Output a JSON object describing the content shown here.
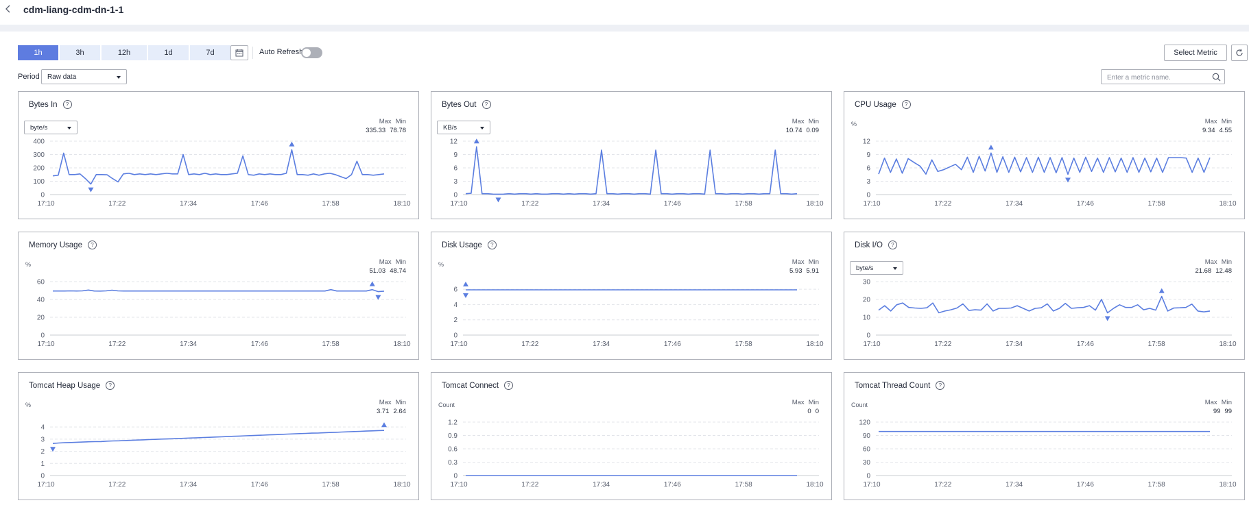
{
  "page": {
    "title": "cdm-liang-cdm-dn-1-1"
  },
  "toolbar": {
    "ranges": [
      "1h",
      "3h",
      "12h",
      "1d",
      "7d"
    ],
    "active_range": "1h",
    "auto_refresh_label": "Auto Refresh",
    "auto_refresh_on": false,
    "select_metric_label": "Select Metric"
  },
  "filter": {
    "period_label": "Period",
    "period_value": "Raw data",
    "search_placeholder": "Enter a metric name."
  },
  "legend_labels": {
    "max": "Max",
    "min": "Min"
  },
  "colors": {
    "accent": "#5e7ce0",
    "line": "#5b7ee0",
    "border": "#adb0b8"
  },
  "charts": [
    {
      "title": "Bytes In",
      "unit_select": "byte/s",
      "max": "335.33",
      "min": "78.78",
      "chart_data": {
        "type": "line",
        "x_ticks": [
          "17:10",
          "17:22",
          "17:34",
          "17:46",
          "17:58",
          "18:10"
        ],
        "y_ticks": [
          0,
          100,
          200,
          300,
          400
        ],
        "ylim": [
          0,
          400
        ],
        "grid": "horizontal-dashed",
        "values": [
          140,
          145,
          310,
          150,
          150,
          155,
          120,
          78.78,
          150,
          150,
          148,
          120,
          95,
          155,
          160,
          150,
          155,
          150,
          155,
          150,
          155,
          160,
          155,
          155,
          300,
          150,
          155,
          150,
          160,
          150,
          155,
          150,
          150,
          155,
          160,
          290,
          150,
          145,
          155,
          150,
          155,
          150,
          150,
          160,
          335.33,
          150,
          150,
          145,
          155,
          145,
          155,
          160,
          150,
          135,
          120,
          150,
          250,
          150,
          150,
          145,
          150,
          155
        ]
      }
    },
    {
      "title": "Bytes Out",
      "unit_select": "KB/s",
      "max": "10.74",
      "min": "0.09",
      "chart_data": {
        "type": "line",
        "x_ticks": [
          "17:10",
          "17:22",
          "17:34",
          "17:46",
          "17:58",
          "18:10"
        ],
        "y_ticks": [
          0,
          3,
          6,
          9,
          12
        ],
        "ylim": [
          0,
          12
        ],
        "grid": "horizontal-dashed",
        "values": [
          0.2,
          0.3,
          10.74,
          0.2,
          0.2,
          0.1,
          0.09,
          0.1,
          0.2,
          0.1,
          0.2,
          0.2,
          0.1,
          0.2,
          0.1,
          0.1,
          0.2,
          0.2,
          0.1,
          0.2,
          0.1,
          0.2,
          0.2,
          0.1,
          0.2,
          10,
          0.2,
          0.2,
          0.1,
          0.2,
          0.2,
          0.1,
          0.2,
          0.2,
          0.1,
          10,
          0.2,
          0.2,
          0.1,
          0.2,
          0.2,
          0.1,
          0.2,
          0.2,
          0.1,
          10,
          0.2,
          0.2,
          0.1,
          0.2,
          0.2,
          0.1,
          0.2,
          0.2,
          0.1,
          0.2,
          0.2,
          10,
          0.2,
          0.2,
          0.1,
          0.2
        ]
      }
    },
    {
      "title": "CPU Usage",
      "unit_label": "%",
      "max": "9.34",
      "min": "4.55",
      "chart_data": {
        "type": "line",
        "x_ticks": [
          "17:10",
          "17:22",
          "17:34",
          "17:46",
          "17:58",
          "18:10"
        ],
        "y_ticks": [
          0,
          3,
          6,
          9,
          12
        ],
        "ylim": [
          0,
          12
        ],
        "grid": "horizontal-dashed",
        "values": [
          4.6,
          8.2,
          5,
          8,
          4.8,
          8.1,
          7.2,
          6.4,
          4.6,
          7.8,
          5.2,
          5.6,
          6.2,
          6.8,
          5.6,
          8.4,
          5,
          8.6,
          5.3,
          9.34,
          5,
          8.5,
          5,
          8.4,
          5.1,
          8.3,
          5,
          8.4,
          5,
          8.3,
          4.9,
          8.3,
          4.55,
          8.2,
          5,
          8.4,
          5.2,
          8.2,
          5,
          8.3,
          5.1,
          8.2,
          5,
          8.3,
          5,
          8.2,
          5.1,
          8.2,
          5,
          8.3,
          8.3,
          8.3,
          8.2,
          5,
          8.2,
          5,
          8.3
        ]
      }
    },
    {
      "title": "Memory Usage",
      "unit_label": "%",
      "max": "51.03",
      "min": "48.74",
      "chart_data": {
        "type": "line",
        "x_ticks": [
          "17:10",
          "17:22",
          "17:34",
          "17:46",
          "17:58",
          "18:10"
        ],
        "y_ticks": [
          0,
          20,
          40,
          60
        ],
        "ylim": [
          0,
          60
        ],
        "grid": "horizontal-dashed",
        "values": [
          49.5,
          49.5,
          49.5,
          49.6,
          49.5,
          49.6,
          50.5,
          49.5,
          49.4,
          49.6,
          50.4,
          49.6,
          49.5,
          49.5,
          49.5,
          49.5,
          49.5,
          49.5,
          49.5,
          49.5,
          49.5,
          49.5,
          49.5,
          49.5,
          49.5,
          49.5,
          49.5,
          49.5,
          49.5,
          49.5,
          49.5,
          49.5,
          49.5,
          49.5,
          49.5,
          49.5,
          49.5,
          49.5,
          49.5,
          49.5,
          49.5,
          49.5,
          49.5,
          49.5,
          49.5,
          49.5,
          49.5,
          51,
          49.5,
          49.5,
          49.5,
          49.5,
          49.5,
          49.5,
          51.03,
          48.74,
          49.3
        ]
      }
    },
    {
      "title": "Disk Usage",
      "unit_label": "%",
      "max": "5.93",
      "min": "5.91",
      "chart_data": {
        "type": "line",
        "x_ticks": [
          "17:10",
          "17:22",
          "17:34",
          "17:46",
          "17:58",
          "18:10"
        ],
        "y_ticks": [
          0,
          2,
          4,
          6
        ],
        "ylim": [
          0,
          7
        ],
        "grid": "horizontal-dashed",
        "values": [
          5.92,
          5.92,
          5.92,
          5.92,
          5.92,
          5.92,
          5.92,
          5.92,
          5.92,
          5.92,
          5.92,
          5.92,
          5.92,
          5.92,
          5.92,
          5.92,
          5.92,
          5.92,
          5.92,
          5.92,
          5.92,
          5.92,
          5.92,
          5.92,
          5.92,
          5.92,
          5.92,
          5.92,
          5.92,
          5.92,
          5.92,
          5.92,
          5.92,
          5.92,
          5.92,
          5.92,
          5.92,
          5.92,
          5.92,
          5.92,
          5.92,
          5.92,
          5.92,
          5.92,
          5.92,
          5.92,
          5.92,
          5.92,
          5.92,
          5.92,
          5.92,
          5.92,
          5.92,
          5.92,
          5.92,
          5.92,
          5.92
        ]
      }
    },
    {
      "title": "Disk I/O",
      "unit_select": "byte/s",
      "max": "21.68",
      "min": "12.48",
      "chart_data": {
        "type": "line",
        "x_ticks": [
          "17:10",
          "17:22",
          "17:34",
          "17:46",
          "17:58",
          "18:10"
        ],
        "y_ticks": [
          0,
          10,
          20,
          30
        ],
        "ylim": [
          0,
          30
        ],
        "grid": "horizontal-dashed",
        "values": [
          14,
          16.5,
          13.5,
          17,
          18,
          15.5,
          15.2,
          15,
          15.3,
          18,
          12.5,
          13.5,
          14.2,
          15.2,
          17.5,
          13.8,
          14.2,
          14,
          17.5,
          13.5,
          15,
          15,
          15.2,
          16.5,
          15,
          13.5,
          15,
          15.3,
          17.5,
          13.5,
          15,
          17.8,
          15,
          15.3,
          15.5,
          16.5,
          14,
          20,
          12.48,
          15,
          17,
          15.5,
          15.5,
          17,
          14.2,
          15,
          14,
          21.68,
          13.5,
          15.2,
          15.3,
          15.5,
          17.4,
          13.5,
          13,
          13.5
        ]
      }
    },
    {
      "title": "Tomcat Heap Usage",
      "unit_label": "%",
      "max": "3.71",
      "min": "2.64",
      "chart_data": {
        "type": "line",
        "x_ticks": [
          "17:10",
          "17:22",
          "17:34",
          "17:46",
          "17:58",
          "18:10"
        ],
        "y_ticks": [
          0,
          1,
          2,
          3,
          4
        ],
        "ylim": [
          0,
          4.4
        ],
        "grid": "horizontal-dashed",
        "values": [
          2.64,
          2.68,
          2.7,
          2.72,
          2.74,
          2.76,
          2.78,
          2.79,
          2.8,
          2.83,
          2.85,
          2.86,
          2.88,
          2.9,
          2.92,
          2.94,
          2.96,
          2.98,
          3,
          3.01,
          3.03,
          3.05,
          3.07,
          3.09,
          3.11,
          3.13,
          3.15,
          3.17,
          3.19,
          3.21,
          3.23,
          3.25,
          3.27,
          3.29,
          3.31,
          3.33,
          3.35,
          3.37,
          3.39,
          3.41,
          3.43,
          3.45,
          3.47,
          3.49,
          3.5,
          3.52,
          3.54,
          3.56,
          3.58,
          3.6,
          3.62,
          3.64,
          3.66,
          3.68,
          3.7,
          3.71
        ]
      }
    },
    {
      "title": "Tomcat Connect",
      "unit_label": "Count",
      "max": "0",
      "min": "0",
      "chart_data": {
        "type": "line",
        "x_ticks": [
          "17:10",
          "17:22",
          "17:34",
          "17:46",
          "17:58",
          "18:10"
        ],
        "y_ticks": [
          "0",
          "0.3",
          "0.6",
          "0.9",
          "1.2"
        ],
        "ylim": [
          0,
          1.2
        ],
        "grid": "horizontal-dashed",
        "values": [
          0,
          0,
          0,
          0,
          0,
          0,
          0,
          0,
          0,
          0,
          0,
          0,
          0,
          0,
          0,
          0,
          0,
          0,
          0,
          0,
          0,
          0,
          0,
          0,
          0,
          0,
          0,
          0,
          0,
          0,
          0,
          0,
          0,
          0,
          0,
          0,
          0,
          0,
          0,
          0,
          0,
          0,
          0,
          0,
          0,
          0,
          0,
          0,
          0,
          0,
          0,
          0,
          0,
          0,
          0,
          0,
          0,
          0,
          0,
          0
        ]
      }
    },
    {
      "title": "Tomcat Thread Count",
      "unit_label": "Count",
      "max": "99",
      "min": "99",
      "chart_data": {
        "type": "line",
        "x_ticks": [
          "17:10",
          "17:22",
          "17:34",
          "17:46",
          "17:58",
          "18:10"
        ],
        "y_ticks": [
          0,
          30,
          60,
          90,
          120
        ],
        "ylim": [
          0,
          120
        ],
        "grid": "horizontal-dashed",
        "values": [
          99,
          99,
          99,
          99,
          99,
          99,
          99,
          99,
          99,
          99,
          99,
          99,
          99,
          99,
          99,
          99,
          99,
          99,
          99,
          99,
          99,
          99,
          99,
          99,
          99,
          99,
          99,
          99,
          99,
          99,
          99,
          99,
          99,
          99,
          99,
          99,
          99,
          99,
          99,
          99,
          99,
          99,
          99,
          99,
          99,
          99,
          99,
          99,
          99,
          99,
          99,
          99,
          99,
          99,
          99,
          99
        ]
      }
    }
  ]
}
